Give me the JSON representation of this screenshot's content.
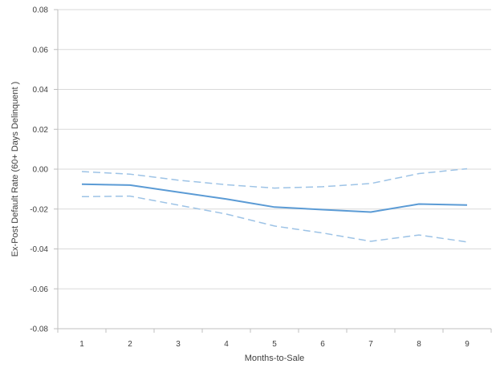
{
  "chart_data": {
    "type": "line",
    "x": [
      1,
      2,
      3,
      4,
      5,
      6,
      7,
      8,
      9
    ],
    "xlabel": "Months-to-Sale",
    "ylabel": "Ex-Post Default Rate (60+ Days Delinquent )",
    "xlim": [
      0.5,
      9.5
    ],
    "ylim": [
      -0.08,
      0.08
    ],
    "xticks": [
      "1",
      "2",
      "3",
      "4",
      "5",
      "6",
      "7",
      "8",
      "9"
    ],
    "yticks": [
      "-0.08",
      "-0.06",
      "-0.04",
      "-0.02",
      "0.00",
      "0.02",
      "0.04",
      "0.06",
      "0.08"
    ],
    "grid": "horizontal",
    "legend": "none",
    "series": [
      {
        "style": "solid",
        "color": "#5b9bd5",
        "values": [
          -0.0075,
          -0.008,
          -0.0115,
          -0.015,
          -0.019,
          -0.0203,
          -0.0215,
          -0.0175,
          -0.018
        ]
      },
      {
        "style": "dashed",
        "color": "#9dc3e6",
        "values": [
          -0.0012,
          -0.0025,
          -0.0055,
          -0.0078,
          -0.0095,
          -0.0088,
          -0.0072,
          -0.0022,
          0.0002
        ]
      },
      {
        "style": "dashed",
        "color": "#9dc3e6",
        "values": [
          -0.0138,
          -0.0135,
          -0.018,
          -0.0225,
          -0.0285,
          -0.032,
          -0.0362,
          -0.033,
          -0.0365
        ]
      }
    ]
  }
}
